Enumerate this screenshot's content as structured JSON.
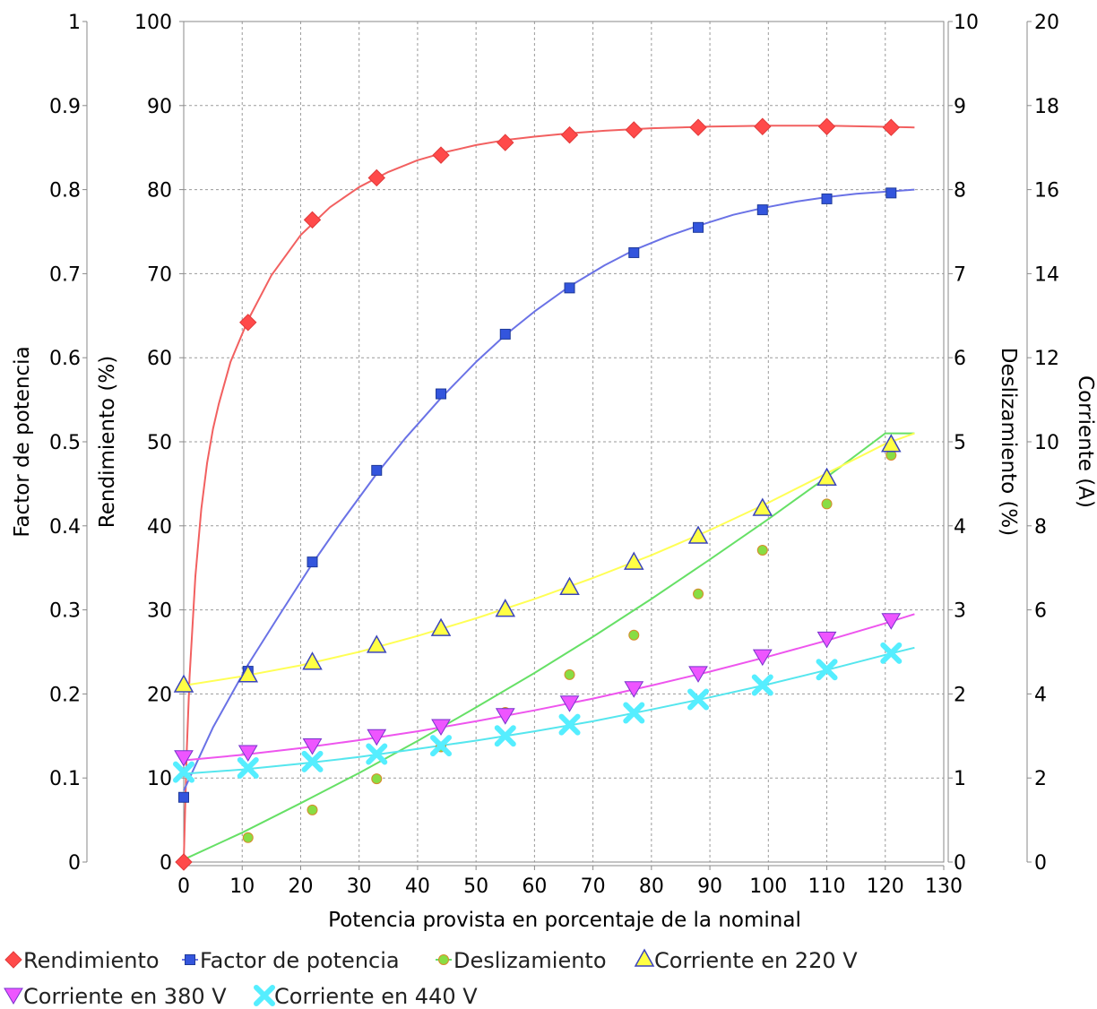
{
  "chart_data": {
    "type": "line",
    "title": "",
    "xlabel": "Potencia provista en porcentaje de la nominal",
    "xlim": [
      0,
      130
    ],
    "x_ticks": [
      "0",
      "10",
      "20",
      "30",
      "40",
      "50",
      "60",
      "70",
      "80",
      "90",
      "100",
      "110",
      "120",
      "130"
    ],
    "grid": true,
    "legend_position": "bottom",
    "axes": {
      "pf": {
        "label": "Factor de potencia",
        "ylim": [
          0,
          1
        ],
        "ticks": [
          "0",
          "0.1",
          "0.2",
          "0.3",
          "0.4",
          "0.5",
          "0.6",
          "0.7",
          "0.8",
          "0.9",
          "1"
        ],
        "side": "left-outer"
      },
      "eff": {
        "label": "Rendimiento (%)",
        "ylim": [
          0,
          100
        ],
        "ticks": [
          "0",
          "10",
          "20",
          "30",
          "40",
          "50",
          "60",
          "70",
          "80",
          "90",
          "100"
        ],
        "side": "left-inner"
      },
      "slip": {
        "label": "Deslizamiento (%)",
        "ylim": [
          0,
          10
        ],
        "ticks": [
          "0",
          "1",
          "2",
          "3",
          "4",
          "5",
          "6",
          "7",
          "8",
          "9",
          "10"
        ],
        "side": "right-inner"
      },
      "cur": {
        "label": "Corriente (A)",
        "ylim": [
          0,
          20
        ],
        "ticks": [
          "0",
          "2",
          "4",
          "6",
          "8",
          "10",
          "12",
          "14",
          "16",
          "18",
          "20"
        ],
        "side": "right-outer"
      }
    },
    "series": [
      {
        "name": "Rendimiento",
        "axis": "eff",
        "color": "#ff4a4a",
        "line_color": "#f26060",
        "marker": "diamond",
        "points": [
          [
            0,
            0
          ],
          [
            11,
            64.2
          ],
          [
            22,
            76.4
          ],
          [
            33,
            81.4
          ],
          [
            44,
            84.1
          ],
          [
            55,
            85.6
          ],
          [
            66,
            86.5
          ],
          [
            77,
            87.1
          ],
          [
            88,
            87.4
          ],
          [
            99,
            87.5
          ],
          [
            110,
            87.5
          ],
          [
            121,
            87.4
          ]
        ],
        "curve": [
          [
            0,
            0
          ],
          [
            0.5,
            13
          ],
          [
            1,
            22
          ],
          [
            2,
            34
          ],
          [
            3,
            42
          ],
          [
            4,
            47.5
          ],
          [
            5,
            51.5
          ],
          [
            6,
            54.5
          ],
          [
            8,
            59.5
          ],
          [
            11,
            64.5
          ],
          [
            15,
            69.8
          ],
          [
            20,
            74.6
          ],
          [
            25,
            77.9
          ],
          [
            30,
            80.3
          ],
          [
            35,
            82.1
          ],
          [
            40,
            83.5
          ],
          [
            45,
            84.5
          ],
          [
            50,
            85.3
          ],
          [
            55,
            85.9
          ],
          [
            60,
            86.3
          ],
          [
            66,
            86.7
          ],
          [
            72,
            87.0
          ],
          [
            80,
            87.3
          ],
          [
            90,
            87.5
          ],
          [
            100,
            87.6
          ],
          [
            110,
            87.6
          ],
          [
            118,
            87.5
          ],
          [
            125,
            87.4
          ]
        ]
      },
      {
        "name": "Factor de potencia",
        "axis": "pf",
        "color": "#3355dd",
        "line_color": "#6a72e6",
        "marker": "square",
        "points": [
          [
            0,
            0.077
          ],
          [
            11,
            0.227
          ],
          [
            22,
            0.357
          ],
          [
            33,
            0.466
          ],
          [
            44,
            0.557
          ],
          [
            55,
            0.628
          ],
          [
            66,
            0.683
          ],
          [
            77,
            0.725
          ],
          [
            88,
            0.755
          ],
          [
            99,
            0.776
          ],
          [
            110,
            0.789
          ],
          [
            121,
            0.796
          ]
        ],
        "curve": [
          [
            0,
            0.085
          ],
          [
            5,
            0.16
          ],
          [
            11,
            0.235
          ],
          [
            16,
            0.29
          ],
          [
            22,
            0.355
          ],
          [
            27,
            0.405
          ],
          [
            33,
            0.462
          ],
          [
            38,
            0.505
          ],
          [
            44,
            0.552
          ],
          [
            50,
            0.595
          ],
          [
            55,
            0.627
          ],
          [
            60,
            0.655
          ],
          [
            66,
            0.685
          ],
          [
            72,
            0.71
          ],
          [
            77,
            0.728
          ],
          [
            83,
            0.745
          ],
          [
            88,
            0.757
          ],
          [
            94,
            0.77
          ],
          [
            99,
            0.778
          ],
          [
            105,
            0.786
          ],
          [
            110,
            0.791
          ],
          [
            115,
            0.795
          ],
          [
            121,
            0.798
          ],
          [
            125,
            0.8
          ]
        ]
      },
      {
        "name": "Deslizamiento",
        "axis": "slip",
        "color": "#88dd44",
        "line_color": "#66e066",
        "marker": "circle",
        "points": [
          [
            11,
            0.29
          ],
          [
            22,
            0.62
          ],
          [
            33,
            0.99
          ],
          [
            44,
            1.37
          ],
          [
            55,
            1.78
          ],
          [
            66,
            2.23
          ],
          [
            77,
            2.7
          ],
          [
            88,
            3.19
          ],
          [
            99,
            3.71
          ],
          [
            110,
            4.26
          ],
          [
            121,
            4.84
          ]
        ],
        "curve": [
          [
            0,
            0.03
          ],
          [
            10,
            0.35
          ],
          [
            20,
            0.7
          ],
          [
            30,
            1.06
          ],
          [
            40,
            1.44
          ],
          [
            50,
            1.84
          ],
          [
            60,
            2.25
          ],
          [
            70,
            2.68
          ],
          [
            80,
            3.13
          ],
          [
            90,
            3.6
          ],
          [
            100,
            4.08
          ],
          [
            110,
            4.58
          ],
          [
            120,
            5.1
          ],
          [
            125,
            5.1
          ]
        ]
      },
      {
        "name": "Corriente en 220 V",
        "axis": "cur",
        "color": "#ffff44",
        "stroke": "#3a44bb",
        "line_color": "#ffff55",
        "marker": "triangle-up",
        "points": [
          [
            0,
            4.2
          ],
          [
            11,
            4.44
          ],
          [
            22,
            4.74
          ],
          [
            33,
            5.14
          ],
          [
            44,
            5.54
          ],
          [
            55,
            6.0
          ],
          [
            66,
            6.52
          ],
          [
            77,
            7.12
          ],
          [
            88,
            7.74
          ],
          [
            99,
            8.4
          ],
          [
            110,
            9.12
          ],
          [
            121,
            9.92
          ]
        ],
        "curve": [
          [
            0,
            4.2
          ],
          [
            10,
            4.42
          ],
          [
            20,
            4.68
          ],
          [
            30,
            5.0
          ],
          [
            40,
            5.38
          ],
          [
            50,
            5.8
          ],
          [
            60,
            6.26
          ],
          [
            70,
            6.76
          ],
          [
            80,
            7.3
          ],
          [
            90,
            7.9
          ],
          [
            100,
            8.55
          ],
          [
            110,
            9.25
          ],
          [
            120,
            9.95
          ],
          [
            125,
            10.2
          ]
        ]
      },
      {
        "name": "Corriente en 380 V",
        "axis": "cur",
        "color": "#ee55ff",
        "stroke": "#7733cc",
        "line_color": "#ee55ee",
        "marker": "triangle-down",
        "points": [
          [
            0,
            2.48
          ],
          [
            11,
            2.6
          ],
          [
            22,
            2.76
          ],
          [
            33,
            2.98
          ],
          [
            44,
            3.22
          ],
          [
            55,
            3.48
          ],
          [
            66,
            3.78
          ],
          [
            77,
            4.12
          ],
          [
            88,
            4.48
          ],
          [
            99,
            4.88
          ],
          [
            110,
            5.3
          ],
          [
            121,
            5.74
          ]
        ],
        "curve": [
          [
            0,
            2.42
          ],
          [
            10,
            2.55
          ],
          [
            20,
            2.71
          ],
          [
            30,
            2.9
          ],
          [
            40,
            3.11
          ],
          [
            50,
            3.35
          ],
          [
            60,
            3.61
          ],
          [
            70,
            3.89
          ],
          [
            80,
            4.2
          ],
          [
            90,
            4.53
          ],
          [
            100,
            4.89
          ],
          [
            110,
            5.27
          ],
          [
            120,
            5.68
          ],
          [
            125,
            5.9
          ]
        ]
      },
      {
        "name": "Corriente en 440 V",
        "axis": "cur",
        "color": "#55eeff",
        "line_color": "#55e6ee",
        "marker": "cross",
        "points": [
          [
            0,
            2.14
          ],
          [
            11,
            2.24
          ],
          [
            22,
            2.39
          ],
          [
            33,
            2.57
          ],
          [
            44,
            2.77
          ],
          [
            55,
            3.0
          ],
          [
            66,
            3.27
          ],
          [
            77,
            3.55
          ],
          [
            88,
            3.87
          ],
          [
            99,
            4.21
          ],
          [
            110,
            4.58
          ],
          [
            121,
            4.97
          ]
        ],
        "curve": [
          [
            0,
            2.1
          ],
          [
            10,
            2.2
          ],
          [
            20,
            2.34
          ],
          [
            30,
            2.5
          ],
          [
            40,
            2.69
          ],
          [
            50,
            2.89
          ],
          [
            60,
            3.11
          ],
          [
            70,
            3.35
          ],
          [
            80,
            3.63
          ],
          [
            90,
            3.92
          ],
          [
            100,
            4.23
          ],
          [
            110,
            4.57
          ],
          [
            120,
            4.93
          ],
          [
            125,
            5.1
          ]
        ]
      }
    ]
  }
}
